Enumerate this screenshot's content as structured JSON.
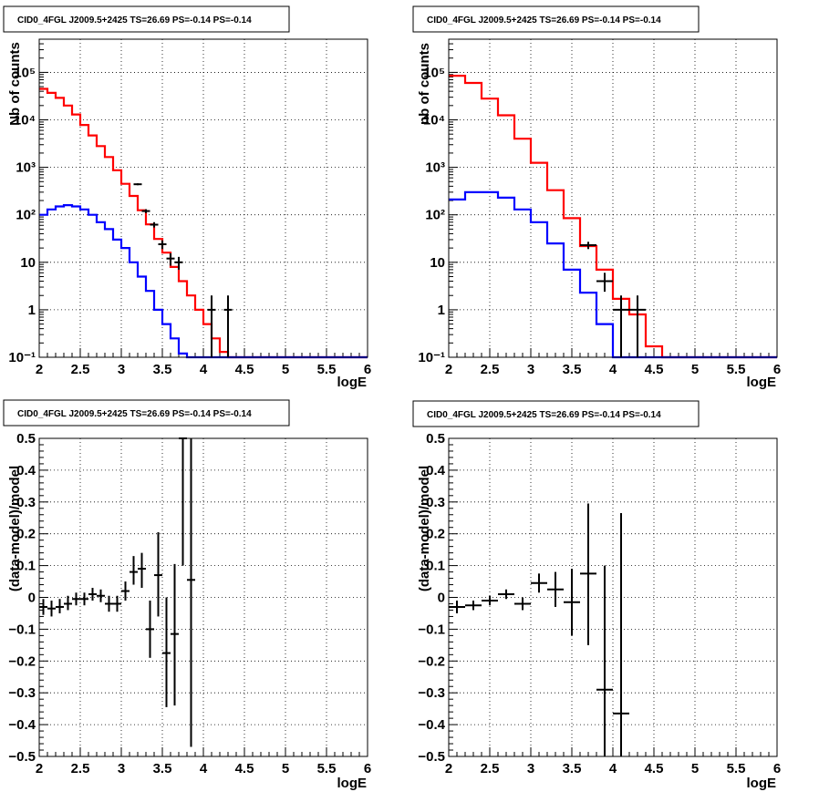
{
  "chart_data": [
    {
      "type": "line",
      "scale": "log",
      "title": "CID0_4FGL J2009.5+2425 TS=26.69 PS=-0.14 PS=-0.14",
      "xlabel": "logE",
      "ylabel": "Nb of counts",
      "xlim": [
        2,
        6
      ],
      "ylim": [
        0.1,
        500000
      ],
      "grid": true,
      "x_ticks": [
        "2",
        "2.5",
        "3",
        "3.5",
        "4",
        "4.5",
        "5",
        "5.5",
        "6"
      ],
      "y_ticks": [
        "10⁻¹",
        "1",
        "10",
        "10²",
        "10³",
        "10⁴",
        "10⁵"
      ],
      "series": [
        {
          "color": "#ff0000",
          "style": "step",
          "edges": [
            2.0,
            2.1,
            2.2,
            2.3,
            2.4,
            2.5,
            2.6,
            2.7,
            2.8,
            2.9,
            3.0,
            3.1,
            3.2,
            3.3,
            3.4,
            3.5,
            3.6,
            3.7,
            3.8,
            3.9,
            4.0,
            4.1,
            4.2,
            4.3,
            4.4,
            6.0
          ],
          "values": [
            45000,
            37000,
            29000,
            20000,
            13000,
            7800,
            4700,
            2800,
            1650,
            870,
            450,
            250,
            125,
            63,
            31,
            16,
            8,
            4,
            2,
            1,
            0.5,
            0.25,
            0.13,
            0.1,
            0.1
          ]
        },
        {
          "color": "#0000ff",
          "style": "step",
          "edges": [
            2.0,
            2.1,
            2.2,
            2.3,
            2.4,
            2.5,
            2.6,
            2.7,
            2.8,
            2.9,
            3.0,
            3.1,
            3.2,
            3.3,
            3.4,
            3.5,
            3.6,
            3.7,
            3.8,
            3.9,
            4.0,
            6.0
          ],
          "values": [
            100,
            130,
            150,
            160,
            150,
            130,
            100,
            70,
            50,
            30,
            20,
            10,
            5,
            2.5,
            1,
            0.5,
            0.25,
            0.12,
            0.1,
            0.1,
            0.1
          ]
        }
      ],
      "points": [
        {
          "x": 3.2,
          "y": 440,
          "xerr": 0.05,
          "ylo": 420,
          "yhi": 460
        },
        {
          "x": 3.3,
          "y": 120,
          "xerr": 0.05,
          "ylo": 109,
          "yhi": 131
        },
        {
          "x": 3.4,
          "y": 62,
          "xerr": 0.05,
          "ylo": 54,
          "yhi": 70
        },
        {
          "x": 3.5,
          "y": 24,
          "xerr": 0.05,
          "ylo": 19,
          "yhi": 29
        },
        {
          "x": 3.6,
          "y": 12,
          "xerr": 0.05,
          "ylo": 8.5,
          "yhi": 15.5
        },
        {
          "x": 3.7,
          "y": 10,
          "xerr": 0.05,
          "ylo": 7,
          "yhi": 13
        },
        {
          "x": 4.1,
          "y": 1,
          "xerr": 0.05,
          "ylo": 0.1,
          "yhi": 2
        },
        {
          "x": 4.3,
          "y": 1,
          "xerr": 0.05,
          "ylo": 0.1,
          "yhi": 2
        }
      ]
    },
    {
      "type": "line",
      "scale": "log",
      "title": "CID0_4FGL J2009.5+2425 TS=26.69 PS=-0.14 PS=-0.14",
      "xlabel": "logE",
      "ylabel": "nb of counts",
      "xlim": [
        2,
        6
      ],
      "ylim": [
        0.1,
        500000
      ],
      "grid": true,
      "x_ticks": [
        "2",
        "2.5",
        "3",
        "3.5",
        "4",
        "4.5",
        "5",
        "5.5",
        "6"
      ],
      "y_ticks": [
        "10⁻¹",
        "1",
        "10",
        "10²",
        "10³",
        "10⁴",
        "10⁵"
      ],
      "series": [
        {
          "color": "#ff0000",
          "style": "step",
          "edges": [
            2.0,
            2.2,
            2.4,
            2.6,
            2.8,
            3.0,
            3.2,
            3.4,
            3.6,
            3.8,
            4.0,
            4.2,
            4.4,
            4.6,
            6.0
          ],
          "values": [
            85000,
            60000,
            28000,
            12500,
            4000,
            1250,
            330,
            85,
            22,
            7,
            1.7,
            0.8,
            0.17,
            0.1
          ]
        },
        {
          "color": "#0000ff",
          "style": "step",
          "edges": [
            2.0,
            2.2,
            2.4,
            2.6,
            2.8,
            3.0,
            3.2,
            3.4,
            3.6,
            3.8,
            4.0,
            6.0
          ],
          "values": [
            210,
            300,
            300,
            230,
            130,
            70,
            25,
            7,
            2.3,
            0.5,
            0.1
          ]
        }
      ],
      "points": [
        {
          "x": 3.7,
          "y": 23,
          "xerr": 0.1,
          "ylo": 19,
          "yhi": 27
        },
        {
          "x": 3.9,
          "y": 4,
          "xerr": 0.1,
          "ylo": 2.4,
          "yhi": 6
        },
        {
          "x": 4.1,
          "y": 1,
          "xerr": 0.1,
          "ylo": 0.1,
          "yhi": 2
        },
        {
          "x": 4.3,
          "y": 1,
          "xerr": 0.1,
          "ylo": 0.1,
          "yhi": 2
        }
      ]
    },
    {
      "type": "scatter",
      "scale": "linear",
      "title": "CID0_4FGL J2009.5+2425 TS=26.69 PS=-0.14 PS=-0.14",
      "xlabel": "logE",
      "ylabel": "(data-model)/model",
      "xlim": [
        2,
        6
      ],
      "ylim": [
        -0.5,
        0.5
      ],
      "grid": true,
      "x_ticks": [
        "2",
        "2.5",
        "3",
        "3.5",
        "4",
        "4.5",
        "5",
        "5.5",
        "6"
      ],
      "y_ticks": [
        "−0.5",
        "−0.4",
        "−0.3",
        "−0.2",
        "−0.1",
        "0",
        "0.1",
        "0.2",
        "0.3",
        "0.4",
        "0.5"
      ],
      "series": [],
      "points": [
        {
          "x": 2.05,
          "y": -0.03,
          "xerr": 0.05,
          "ylo": -0.055,
          "yhi": -0.005
        },
        {
          "x": 2.15,
          "y": -0.035,
          "xerr": 0.05,
          "ylo": -0.06,
          "yhi": -0.01
        },
        {
          "x": 2.25,
          "y": -0.03,
          "xerr": 0.05,
          "ylo": -0.05,
          "yhi": -0.005
        },
        {
          "x": 2.35,
          "y": -0.02,
          "xerr": 0.05,
          "ylo": -0.04,
          "yhi": 0.005
        },
        {
          "x": 2.45,
          "y": -0.005,
          "xerr": 0.05,
          "ylo": -0.025,
          "yhi": 0.015
        },
        {
          "x": 2.55,
          "y": -0.005,
          "xerr": 0.05,
          "ylo": -0.025,
          "yhi": 0.015
        },
        {
          "x": 2.65,
          "y": 0.01,
          "xerr": 0.05,
          "ylo": -0.01,
          "yhi": 0.03
        },
        {
          "x": 2.75,
          "y": 0.005,
          "xerr": 0.05,
          "ylo": -0.015,
          "yhi": 0.025
        },
        {
          "x": 2.85,
          "y": -0.02,
          "xerr": 0.05,
          "ylo": -0.045,
          "yhi": 0.005
        },
        {
          "x": 2.95,
          "y": -0.02,
          "xerr": 0.05,
          "ylo": -0.045,
          "yhi": 0.005
        },
        {
          "x": 3.05,
          "y": 0.02,
          "xerr": 0.05,
          "ylo": -0.01,
          "yhi": 0.05
        },
        {
          "x": 3.15,
          "y": 0.08,
          "xerr": 0.05,
          "ylo": 0.04,
          "yhi": 0.13
        },
        {
          "x": 3.25,
          "y": 0.09,
          "xerr": 0.05,
          "ylo": 0.03,
          "yhi": 0.14
        },
        {
          "x": 3.35,
          "y": -0.1,
          "xerr": 0.05,
          "ylo": -0.19,
          "yhi": -0.01
        },
        {
          "x": 3.45,
          "y": 0.07,
          "xerr": 0.05,
          "ylo": -0.06,
          "yhi": 0.205
        },
        {
          "x": 3.55,
          "y": -0.175,
          "xerr": 0.05,
          "ylo": -0.345,
          "yhi": 0.0
        },
        {
          "x": 3.65,
          "y": -0.115,
          "xerr": 0.05,
          "ylo": -0.34,
          "yhi": 0.105
        },
        {
          "x": 3.75,
          "y": 0.5,
          "xerr": 0.05,
          "ylo": 0.1,
          "yhi": 0.5
        },
        {
          "x": 3.85,
          "y": 0.055,
          "xerr": 0.05,
          "ylo": -0.47,
          "yhi": 0.5
        }
      ]
    },
    {
      "type": "scatter",
      "scale": "linear",
      "title": "CID0_4FGL J2009.5+2425 TS=26.69 PS=-0.14 PS=-0.14",
      "xlabel": "logE",
      "ylabel": "(data-model)/model",
      "xlim": [
        2,
        6
      ],
      "ylim": [
        -0.5,
        0.5
      ],
      "grid": true,
      "x_ticks": [
        "2",
        "2.5",
        "3",
        "3.5",
        "4",
        "4.5",
        "5",
        "5.5",
        "6"
      ],
      "y_ticks": [
        "−0.5",
        "−0.4",
        "−0.3",
        "−0.2",
        "−0.1",
        "0",
        "0.1",
        "0.2",
        "0.3",
        "0.4",
        "0.5"
      ],
      "series": [],
      "points": [
        {
          "x": 2.1,
          "y": -0.03,
          "xerr": 0.1,
          "ylo": -0.05,
          "yhi": -0.01
        },
        {
          "x": 2.3,
          "y": -0.025,
          "xerr": 0.1,
          "ylo": -0.04,
          "yhi": -0.01
        },
        {
          "x": 2.5,
          "y": -0.01,
          "xerr": 0.1,
          "ylo": -0.025,
          "yhi": 0.005
        },
        {
          "x": 2.7,
          "y": 0.01,
          "xerr": 0.1,
          "ylo": -0.005,
          "yhi": 0.025
        },
        {
          "x": 2.9,
          "y": -0.02,
          "xerr": 0.1,
          "ylo": -0.04,
          "yhi": 0.0
        },
        {
          "x": 3.1,
          "y": 0.045,
          "xerr": 0.1,
          "ylo": 0.015,
          "yhi": 0.075
        },
        {
          "x": 3.3,
          "y": 0.025,
          "xerr": 0.1,
          "ylo": -0.03,
          "yhi": 0.08
        },
        {
          "x": 3.5,
          "y": -0.015,
          "xerr": 0.1,
          "ylo": -0.12,
          "yhi": 0.09
        },
        {
          "x": 3.7,
          "y": 0.075,
          "xerr": 0.1,
          "ylo": -0.15,
          "yhi": 0.295
        },
        {
          "x": 3.9,
          "y": -0.29,
          "xerr": 0.1,
          "ylo": -0.5,
          "yhi": 0.1
        },
        {
          "x": 4.1,
          "y": -0.365,
          "xerr": 0.1,
          "ylo": -0.5,
          "yhi": 0.265
        }
      ]
    }
  ]
}
